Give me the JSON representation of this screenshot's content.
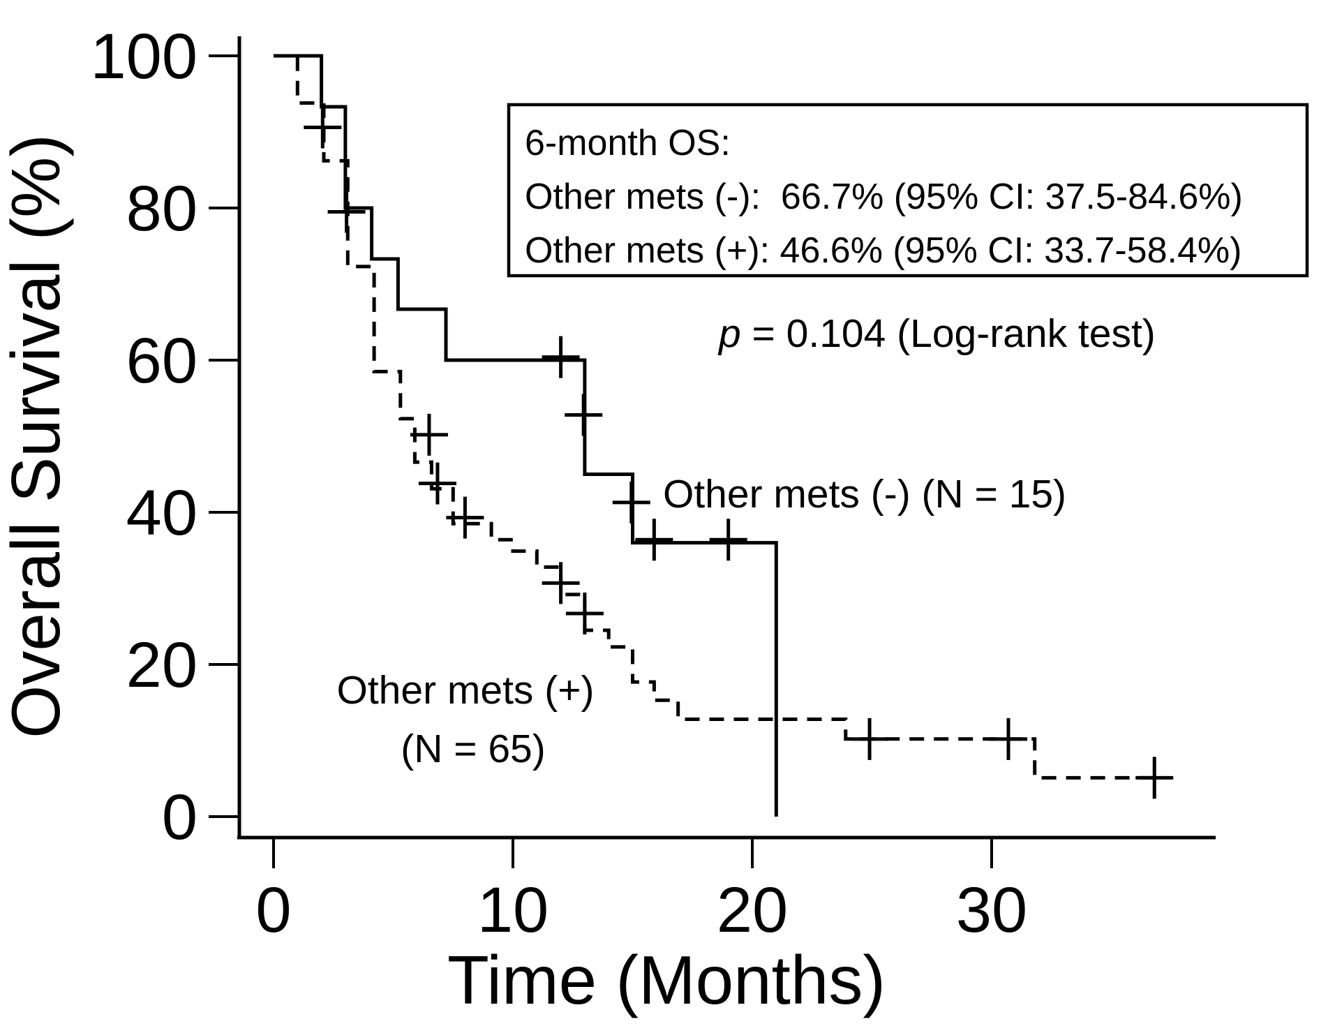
{
  "figure": {
    "background_color": "#ffffff",
    "ink_color": "#000000"
  },
  "chart_data": {
    "type": "line",
    "subtype": "kaplan-meier-step-curves",
    "title": "",
    "xlabel": "Time (Months)",
    "ylabel": "Overall Survival  (%)",
    "xlim": [
      0,
      38
    ],
    "ylim": [
      0,
      100
    ],
    "x_ticks": [
      0,
      10,
      20,
      30
    ],
    "y_ticks": [
      0,
      20,
      40,
      60,
      80,
      100
    ],
    "grid": false,
    "legend_position": "labels-on-plot",
    "series": [
      {
        "name": "Other mets (-)",
        "n": 15,
        "label_text": "Other mets (-) (N = 15)",
        "line_style": "solid",
        "steps_t_pct": [
          [
            0,
            100
          ],
          [
            2,
            93.3
          ],
          [
            3,
            80
          ],
          [
            4.1,
            73.3
          ],
          [
            5.2,
            66.7
          ],
          [
            7.2,
            60
          ],
          [
            13,
            45
          ],
          [
            15,
            36
          ],
          [
            21,
            0
          ]
        ],
        "end_month": 21,
        "censor_marks_t_pct": [
          [
            2.05,
            90.6
          ],
          [
            3.05,
            79.5
          ],
          [
            12,
            60.4
          ],
          [
            12.95,
            52.8
          ],
          [
            14.95,
            41.3
          ],
          [
            15.9,
            36.4
          ],
          [
            19,
            36.4
          ]
        ]
      },
      {
        "name": "Other mets (+)",
        "n": 65,
        "label_text_line1": "Other mets (+)",
        "label_text_line2": "(N = 65)",
        "line_style": "dashed",
        "steps_t_pct": [
          [
            0,
            100
          ],
          [
            1,
            93.8
          ],
          [
            2.1,
            86.2
          ],
          [
            3.1,
            72.3
          ],
          [
            4.2,
            58.5
          ],
          [
            5.3,
            52.3
          ],
          [
            5.9,
            46.6
          ],
          [
            6.6,
            43.1
          ],
          [
            7.5,
            38.5
          ],
          [
            9.1,
            36.4
          ],
          [
            10,
            34.9
          ],
          [
            11,
            32.8
          ],
          [
            12,
            29.2
          ],
          [
            13,
            24.5
          ],
          [
            14,
            22.3
          ],
          [
            15,
            17.7
          ],
          [
            15.9,
            15.3
          ],
          [
            16.9,
            12.8
          ],
          [
            23.9,
            10.2
          ],
          [
            31.8,
            5.1
          ]
        ],
        "end_month": 37.3,
        "censor_marks_t_pct": [
          [
            6.5,
            50.2
          ],
          [
            6.85,
            43.8
          ],
          [
            8,
            39.3
          ],
          [
            12,
            30.7
          ],
          [
            13,
            26.7
          ],
          [
            24.9,
            10.2
          ],
          [
            30.7,
            10.2
          ],
          [
            36.8,
            5.1
          ]
        ]
      }
    ],
    "annotation_box": {
      "lines": [
        "6-month OS:",
        "Other mets (-):  66.7% (95% CI: 37.5-84.6%)",
        "Other mets (+): 46.6% (95% CI: 33.7-58.4%)"
      ]
    },
    "p_value_text": {
      "italic": "p",
      "rest": " = 0.104 (Log-rank test)"
    }
  }
}
